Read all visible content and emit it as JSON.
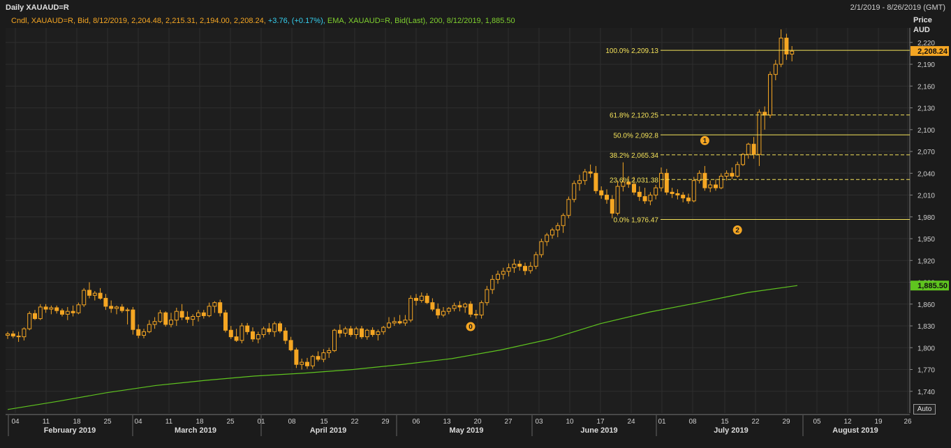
{
  "header": {
    "title": "Daily XAUAUD=R",
    "date_range": "2/1/2019 - 8/26/2019 (GMT)"
  },
  "legend": {
    "candle_text": "Cndl, XAUAUD=R, Bid, 8/12/2019, 2,204.48, 2,215.31, 2,194.00, 2,208.24,",
    "change_text": "+3.76, (+0.17%),",
    "ema_text": "EMA, XAUAUD=R, Bid(Last), 200, 8/12/2019, 1,885.50"
  },
  "axis": {
    "price_title_1": "Price",
    "price_title_2": "AUD",
    "auto_label": "Auto"
  },
  "colors": {
    "background": "#1b1b1b",
    "grid": "#2e2e2e",
    "candle": "#f5a623",
    "ema": "#5fc41f",
    "fib": "#f5e35a",
    "last_price_tag": "#f5a623",
    "ema_tag": "#5fc41f"
  },
  "chart_data": {
    "type": "candlestick",
    "ylim": [
      1710,
      2240
    ],
    "y_ticks": [
      "1,740",
      "1,770",
      "1,800",
      "1,830",
      "1,860",
      "1,890",
      "1,920",
      "1,950",
      "1,980",
      "2,010",
      "2,040",
      "2,070",
      "2,100",
      "2,130",
      "2,160",
      "2,190",
      "2,220"
    ],
    "y_tick_values": [
      1740,
      1770,
      1800,
      1830,
      1860,
      1890,
      1920,
      1950,
      1980,
      2010,
      2040,
      2070,
      2100,
      2130,
      2160,
      2190,
      2220
    ],
    "x_ticks": [
      "04",
      "11",
      "18",
      "25",
      "04",
      "11",
      "18",
      "25",
      "01",
      "08",
      "15",
      "22",
      "29",
      "06",
      "13",
      "20",
      "27",
      "03",
      "10",
      "17",
      "24",
      "01",
      "08",
      "15",
      "22",
      "29",
      "05",
      "12",
      "19",
      "26"
    ],
    "months": [
      "February 2019",
      "March 2019",
      "April 2019",
      "May 2019",
      "June 2019",
      "July 2019",
      "August 2019"
    ],
    "last_price": "2,208.24",
    "ema_last": "1,885.50",
    "fibonacci": [
      {
        "level": "100.0%",
        "value_label": "2,209.13",
        "value": 2209.13,
        "style": "solid"
      },
      {
        "level": "61.8%",
        "value_label": "2,120.25",
        "value": 2120.25,
        "style": "dashed"
      },
      {
        "level": "50.0%",
        "value_label": "2,092.8",
        "value": 2092.8,
        "style": "solid"
      },
      {
        "level": "38.2%",
        "value_label": "2,065.34",
        "value": 2065.34,
        "style": "dashed"
      },
      {
        "level": "23.6%",
        "value_label": "2,031.38",
        "value": 2031.38,
        "style": "dashed"
      },
      {
        "level": "0.0%",
        "value_label": "1,976.47",
        "value": 1976.47,
        "style": "solid"
      }
    ],
    "markers": [
      {
        "label": "0",
        "date_index": 85,
        "price": 1829
      },
      {
        "label": "1",
        "date_index": 128,
        "price": 2085
      },
      {
        "label": "2",
        "date_index": 134,
        "price": 1962
      }
    ],
    "ohlc": [
      [
        1817,
        1822,
        1812,
        1819
      ],
      [
        1819,
        1823,
        1813,
        1816
      ],
      [
        1816,
        1822,
        1808,
        1815
      ],
      [
        1815,
        1828,
        1810,
        1826
      ],
      [
        1826,
        1850,
        1824,
        1847
      ],
      [
        1847,
        1852,
        1838,
        1840
      ],
      [
        1840,
        1860,
        1838,
        1856
      ],
      [
        1856,
        1860,
        1848,
        1853
      ],
      [
        1853,
        1858,
        1846,
        1855
      ],
      [
        1855,
        1858,
        1847,
        1851
      ],
      [
        1851,
        1854,
        1843,
        1846
      ],
      [
        1846,
        1856,
        1838,
        1850
      ],
      [
        1850,
        1858,
        1843,
        1848
      ],
      [
        1848,
        1862,
        1846,
        1859
      ],
      [
        1859,
        1882,
        1856,
        1879
      ],
      [
        1879,
        1890,
        1868,
        1872
      ],
      [
        1872,
        1878,
        1865,
        1875
      ],
      [
        1875,
        1882,
        1866,
        1868
      ],
      [
        1868,
        1874,
        1852,
        1857
      ],
      [
        1857,
        1865,
        1848,
        1854
      ],
      [
        1854,
        1858,
        1846,
        1856
      ],
      [
        1856,
        1860,
        1848,
        1851
      ],
      [
        1851,
        1855,
        1832,
        1852
      ],
      [
        1852,
        1856,
        1818,
        1825
      ],
      [
        1825,
        1832,
        1813,
        1817
      ],
      [
        1817,
        1826,
        1813,
        1822
      ],
      [
        1822,
        1838,
        1820,
        1832
      ],
      [
        1832,
        1842,
        1826,
        1836
      ],
      [
        1836,
        1852,
        1834,
        1848
      ],
      [
        1848,
        1850,
        1829,
        1832
      ],
      [
        1832,
        1848,
        1828,
        1838
      ],
      [
        1838,
        1855,
        1830,
        1850
      ],
      [
        1850,
        1860,
        1838,
        1842
      ],
      [
        1842,
        1850,
        1834,
        1839
      ],
      [
        1839,
        1846,
        1830,
        1843
      ],
      [
        1843,
        1852,
        1836,
        1848
      ],
      [
        1848,
        1852,
        1840,
        1844
      ],
      [
        1844,
        1862,
        1842,
        1857
      ],
      [
        1857,
        1864,
        1848,
        1862
      ],
      [
        1862,
        1866,
        1843,
        1848
      ],
      [
        1848,
        1852,
        1821,
        1824
      ],
      [
        1824,
        1830,
        1812,
        1815
      ],
      [
        1815,
        1826,
        1808,
        1810
      ],
      [
        1810,
        1834,
        1806,
        1830
      ],
      [
        1830,
        1834,
        1818,
        1822
      ],
      [
        1822,
        1828,
        1808,
        1812
      ],
      [
        1812,
        1822,
        1806,
        1818
      ],
      [
        1818,
        1829,
        1814,
        1826
      ],
      [
        1826,
        1834,
        1818,
        1822
      ],
      [
        1822,
        1836,
        1815,
        1833
      ],
      [
        1833,
        1836,
        1820,
        1823
      ],
      [
        1823,
        1828,
        1805,
        1810
      ],
      [
        1810,
        1815,
        1795,
        1797
      ],
      [
        1797,
        1800,
        1772,
        1777
      ],
      [
        1777,
        1785,
        1770,
        1780
      ],
      [
        1780,
        1786,
        1771,
        1775
      ],
      [
        1775,
        1790,
        1771,
        1788
      ],
      [
        1788,
        1795,
        1781,
        1784
      ],
      [
        1784,
        1798,
        1780,
        1793
      ],
      [
        1793,
        1800,
        1786,
        1796
      ],
      [
        1796,
        1826,
        1794,
        1824
      ],
      [
        1824,
        1832,
        1814,
        1820
      ],
      [
        1820,
        1829,
        1815,
        1826
      ],
      [
        1826,
        1830,
        1815,
        1818
      ],
      [
        1818,
        1829,
        1812,
        1826
      ],
      [
        1826,
        1830,
        1812,
        1815
      ],
      [
        1815,
        1826,
        1811,
        1824
      ],
      [
        1824,
        1828,
        1815,
        1818
      ],
      [
        1818,
        1825,
        1810,
        1822
      ],
      [
        1822,
        1830,
        1818,
        1828
      ],
      [
        1828,
        1842,
        1826,
        1834
      ],
      [
        1834,
        1842,
        1830,
        1836
      ],
      [
        1836,
        1845,
        1832,
        1834
      ],
      [
        1834,
        1845,
        1830,
        1838
      ],
      [
        1838,
        1872,
        1835,
        1868
      ],
      [
        1868,
        1874,
        1858,
        1865
      ],
      [
        1865,
        1876,
        1862,
        1871
      ],
      [
        1871,
        1875,
        1860,
        1862
      ],
      [
        1862,
        1868,
        1850,
        1853
      ],
      [
        1853,
        1861,
        1840,
        1845
      ],
      [
        1845,
        1856,
        1842,
        1850
      ],
      [
        1850,
        1856,
        1846,
        1854
      ],
      [
        1854,
        1862,
        1850,
        1858
      ],
      [
        1858,
        1864,
        1850,
        1856
      ],
      [
        1856,
        1862,
        1848,
        1860
      ],
      [
        1860,
        1864,
        1842,
        1846
      ],
      [
        1846,
        1852,
        1840,
        1845
      ],
      [
        1845,
        1865,
        1840,
        1862
      ],
      [
        1862,
        1885,
        1858,
        1880
      ],
      [
        1880,
        1900,
        1874,
        1894
      ],
      [
        1894,
        1906,
        1888,
        1901
      ],
      [
        1901,
        1910,
        1894,
        1905
      ],
      [
        1905,
        1916,
        1898,
        1910
      ],
      [
        1910,
        1922,
        1903,
        1915
      ],
      [
        1915,
        1920,
        1906,
        1912
      ],
      [
        1912,
        1917,
        1900,
        1906
      ],
      [
        1906,
        1918,
        1902,
        1912
      ],
      [
        1912,
        1932,
        1908,
        1928
      ],
      [
        1928,
        1950,
        1924,
        1946
      ],
      [
        1946,
        1958,
        1940,
        1955
      ],
      [
        1955,
        1965,
        1950,
        1962
      ],
      [
        1962,
        1972,
        1952,
        1968
      ],
      [
        1968,
        1985,
        1958,
        1982
      ],
      [
        1982,
        2008,
        1978,
        2004
      ],
      [
        2004,
        2030,
        2000,
        2026
      ],
      [
        2026,
        2038,
        2016,
        2030
      ],
      [
        2030,
        2046,
        2024,
        2042
      ],
      [
        2042,
        2052,
        2034,
        2040
      ],
      [
        2040,
        2050,
        2012,
        2016
      ],
      [
        2016,
        2022,
        2005,
        2010
      ],
      [
        2010,
        2018,
        1998,
        2004
      ],
      [
        2004,
        2010,
        1978,
        1985
      ],
      [
        1985,
        2030,
        1982,
        2022
      ],
      [
        2022,
        2055,
        2015,
        2028
      ],
      [
        2028,
        2036,
        2020,
        2025
      ],
      [
        2025,
        2035,
        2010,
        2014
      ],
      [
        2014,
        2022,
        2002,
        2008
      ],
      [
        2008,
        2020,
        1998,
        2002
      ],
      [
        2002,
        2014,
        1996,
        2010
      ],
      [
        2010,
        2024,
        2004,
        2020
      ],
      [
        2020,
        2048,
        2015,
        2040
      ],
      [
        2040,
        2046,
        2010,
        2014
      ],
      [
        2014,
        2020,
        2006,
        2012
      ],
      [
        2012,
        2018,
        2004,
        2010
      ],
      [
        2010,
        2014,
        2000,
        2006
      ],
      [
        2006,
        2012,
        1998,
        2002
      ],
      [
        2002,
        2035,
        2000,
        2030
      ],
      [
        2030,
        2044,
        2026,
        2040
      ],
      [
        2040,
        2050,
        2016,
        2020
      ],
      [
        2020,
        2030,
        2014,
        2024
      ],
      [
        2024,
        2032,
        2016,
        2020
      ],
      [
        2020,
        2040,
        2018,
        2036
      ],
      [
        2036,
        2044,
        2030,
        2040
      ],
      [
        2040,
        2048,
        2032,
        2036
      ],
      [
        2036,
        2056,
        2034,
        2052
      ],
      [
        2052,
        2068,
        2050,
        2066
      ],
      [
        2066,
        2082,
        2060,
        2080
      ],
      [
        2080,
        2090,
        2060,
        2066
      ],
      [
        2066,
        2128,
        2050,
        2124
      ],
      [
        2124,
        2132,
        2100,
        2120
      ],
      [
        2120,
        2180,
        2116,
        2176
      ],
      [
        2176,
        2196,
        2168,
        2190
      ],
      [
        2190,
        2238,
        2186,
        2226
      ],
      [
        2226,
        2232,
        2196,
        2204
      ],
      [
        2204,
        2215,
        2194,
        2208
      ]
    ],
    "ema": [
      [
        0,
        1715
      ],
      [
        10,
        1726
      ],
      [
        20,
        1738
      ],
      [
        30,
        1748
      ],
      [
        40,
        1755
      ],
      [
        50,
        1761
      ],
      [
        60,
        1765
      ],
      [
        70,
        1770
      ],
      [
        80,
        1777
      ],
      [
        90,
        1785
      ],
      [
        100,
        1797
      ],
      [
        110,
        1812
      ],
      [
        120,
        1833
      ],
      [
        130,
        1849
      ],
      [
        140,
        1862
      ],
      [
        150,
        1876
      ],
      [
        160,
        1885.5
      ]
    ]
  }
}
